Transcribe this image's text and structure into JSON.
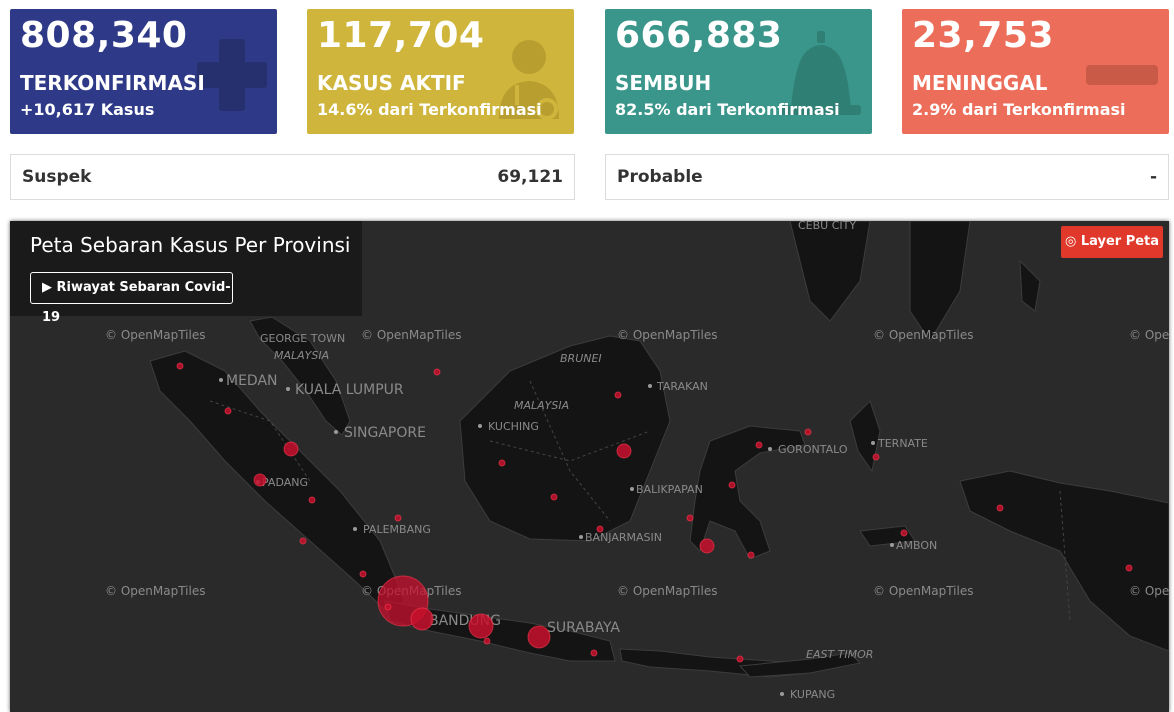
{
  "cards": [
    {
      "value": "808,340",
      "label": "TERKONFIRMASI",
      "sub": "+10,617 Kasus",
      "icon": "plus-icon",
      "color": "#2e3a87"
    },
    {
      "value": "117,704",
      "label": "KASUS AKTIF",
      "sub": "14.6% dari Terkonfirmasi",
      "icon": "doctor-icon",
      "color": "#cfb53b"
    },
    {
      "value": "666,883",
      "label": "SEMBUH",
      "sub": "82.5% dari Terkonfirmasi",
      "icon": "bell-icon",
      "color": "#3a968a"
    },
    {
      "value": "23,753",
      "label": "MENINGGAL",
      "sub": "2.9% dari Terkonfirmasi",
      "icon": "minus-icon",
      "color": "#ec6e5a"
    }
  ],
  "suspek": {
    "label": "Suspek",
    "value": "69,121"
  },
  "probable": {
    "label": "Probable",
    "value": "-"
  },
  "map": {
    "title": "Peta Sebaran Kasus Per Provinsi",
    "history_button": "▶ Riwayat Sebaran Covid-19",
    "layer_button": "◎ Layer Peta",
    "attribution": "© OpenMapTiles",
    "place_labels": {
      "cebu": "CEBU CITY",
      "george": "GEORGE TOWN",
      "malaysia_w": "MALAYSIA",
      "medan": "MEDAN",
      "kl": "KUALA LUMPUR",
      "singapore": "SINGAPORE",
      "brunei": "BRUNEI",
      "tarakan": "TARAKAN",
      "malaysia_e": "MALAYSIA",
      "kuching": "KUCHING",
      "padang": "PADANG",
      "palembang": "PALEMBANG",
      "balikpapan": "BALIKPAPAN",
      "banjarmasin": "BANJARMASIN",
      "gorontalo": "GORONTALO",
      "ternate": "TERNATE",
      "ambon": "AMBON",
      "bandung": "BANDUNG",
      "surabaya": "SURABAYA",
      "east_timor": "EAST TIMOR",
      "kupang": "KUPANG"
    }
  }
}
